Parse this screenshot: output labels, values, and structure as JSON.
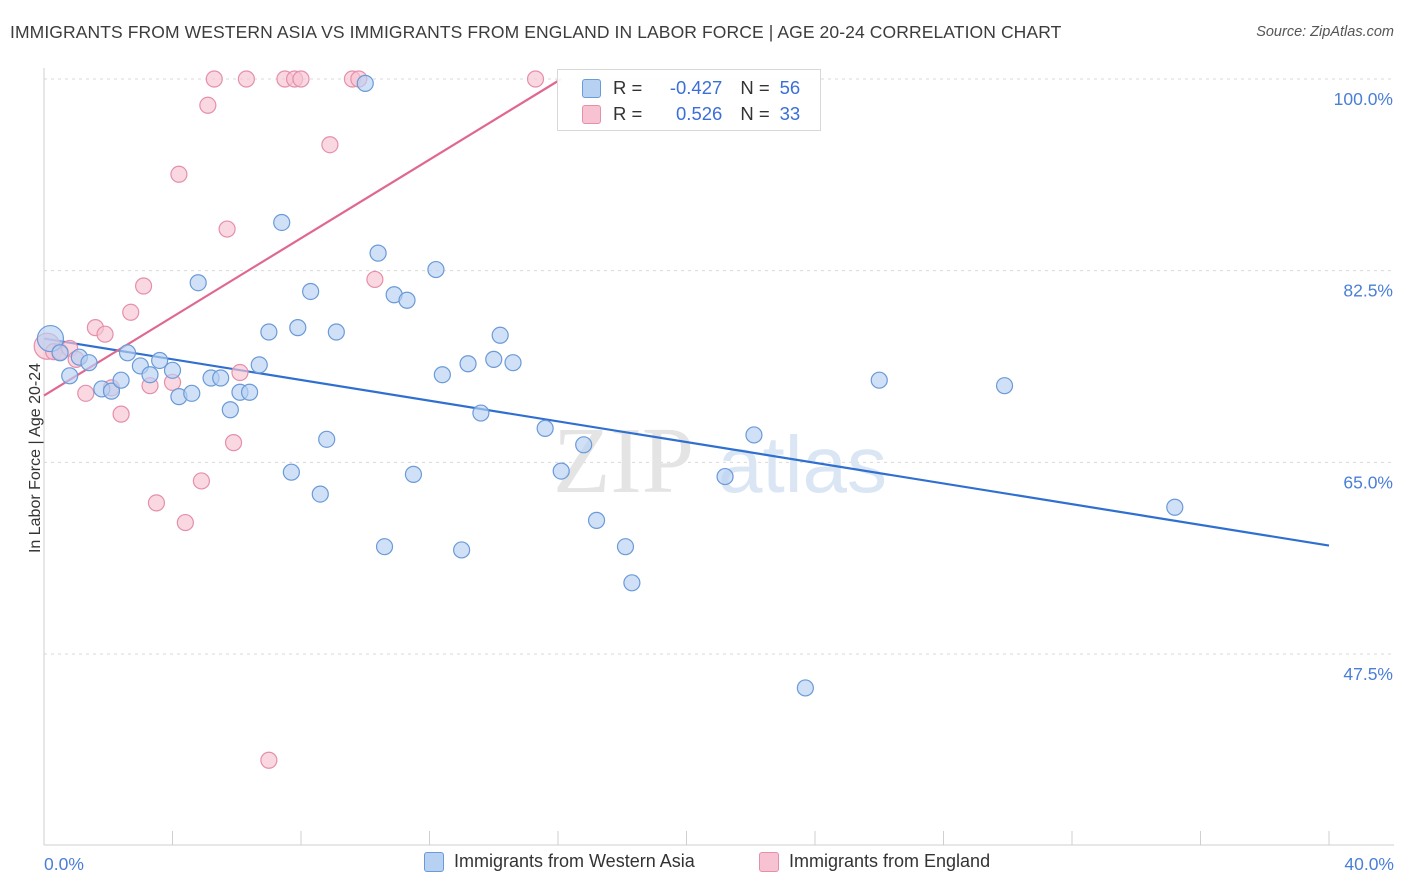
{
  "title": "IMMIGRANTS FROM WESTERN ASIA VS IMMIGRANTS FROM ENGLAND IN LABOR FORCE | AGE 20-24 CORRELATION CHART",
  "source": "Source: ZipAtlas.com",
  "watermark": {
    "zip": "ZIP",
    "atlas": "atlas"
  },
  "colors": {
    "blue_fill": "#b7d1f3",
    "blue_stroke": "#6a9ad8",
    "blue_line": "#2f6fd0",
    "pink_fill": "#f7c3d3",
    "pink_stroke": "#e58fab",
    "pink_line": "#e0688f",
    "tick_label": "#4a7fd6",
    "grid": "#d9d9d9"
  },
  "legend_inset": {
    "rows": [
      {
        "r_label": "R =",
        "r_value": "-0.427",
        "n_label": "N =",
        "n_value": "56"
      },
      {
        "r_label": "R =",
        "r_value": "0.526",
        "n_label": "N =",
        "n_value": "33"
      }
    ]
  },
  "legend_bottom": [
    "Immigrants from Western Asia",
    "Immigrants from England"
  ],
  "chart_data": {
    "type": "scatter",
    "title": "IMMIGRANTS FROM WESTERN ASIA VS IMMIGRANTS FROM ENGLAND IN LABOR FORCE | AGE 20-24 CORRELATION CHART",
    "xlabel": "",
    "ylabel": "In Labor Force | Age 20-24",
    "xlim": [
      0,
      40
    ],
    "ylim": [
      32,
      101.8
    ],
    "x_tick_labels": [
      "0.0%",
      "40.0%"
    ],
    "y_ticks": [
      47.5,
      65.0,
      82.5,
      100.0
    ],
    "y_tick_labels": [
      "47.5%",
      "65.0%",
      "82.5%",
      "100.0%"
    ],
    "grid": true,
    "legend_placement": "bottom",
    "series": [
      {
        "name": "Immigrants from Western Asia",
        "r": -0.427,
        "n": 56,
        "trend": {
          "x": [
            0.0,
            40.0
          ],
          "y": [
            76.3,
            57.4
          ]
        },
        "points": [
          [
            0.2,
            76.3
          ],
          [
            0.5,
            75.0
          ],
          [
            0.8,
            72.9
          ],
          [
            1.1,
            74.6
          ],
          [
            1.4,
            74.1
          ],
          [
            1.8,
            71.7
          ],
          [
            2.1,
            71.5
          ],
          [
            2.4,
            72.5
          ],
          [
            2.6,
            75.0
          ],
          [
            3.0,
            73.8
          ],
          [
            3.3,
            73.0
          ],
          [
            3.6,
            74.3
          ],
          [
            4.0,
            73.4
          ],
          [
            4.2,
            71.0
          ],
          [
            4.6,
            71.3
          ],
          [
            4.8,
            81.4
          ],
          [
            5.2,
            72.7
          ],
          [
            5.5,
            72.7
          ],
          [
            5.8,
            69.8
          ],
          [
            6.1,
            71.4
          ],
          [
            6.4,
            71.4
          ],
          [
            6.7,
            73.9
          ],
          [
            7.0,
            76.9
          ],
          [
            7.4,
            86.9
          ],
          [
            7.7,
            64.1
          ],
          [
            7.9,
            77.3
          ],
          [
            8.3,
            80.6
          ],
          [
            8.6,
            62.1
          ],
          [
            8.8,
            67.1
          ],
          [
            9.1,
            76.9
          ],
          [
            10.0,
            99.6
          ],
          [
            10.4,
            84.1
          ],
          [
            10.6,
            57.3
          ],
          [
            10.9,
            80.3
          ],
          [
            11.3,
            79.8
          ],
          [
            11.5,
            63.9
          ],
          [
            12.2,
            82.6
          ],
          [
            12.4,
            73.0
          ],
          [
            13.0,
            57.0
          ],
          [
            13.2,
            74.0
          ],
          [
            13.6,
            69.5
          ],
          [
            14.0,
            74.4
          ],
          [
            14.2,
            76.6
          ],
          [
            14.6,
            74.1
          ],
          [
            15.6,
            68.1
          ],
          [
            16.1,
            64.2
          ],
          [
            16.8,
            66.6
          ],
          [
            17.2,
            59.7
          ],
          [
            18.1,
            57.3
          ],
          [
            18.3,
            54.0
          ],
          [
            21.2,
            63.7
          ],
          [
            22.1,
            67.5
          ],
          [
            23.7,
            44.4
          ],
          [
            26.0,
            72.5
          ],
          [
            29.9,
            72.0
          ],
          [
            35.2,
            60.9
          ]
        ]
      },
      {
        "name": "Immigrants from England",
        "r": 0.526,
        "n": 33,
        "trend": {
          "x": [
            0.0,
            16.1
          ],
          "y": [
            71.1,
            100.0
          ]
        },
        "points": [
          [
            0.1,
            75.6
          ],
          [
            0.3,
            75.1
          ],
          [
            0.5,
            75.1
          ],
          [
            0.8,
            75.4
          ],
          [
            1.0,
            74.4
          ],
          [
            1.3,
            71.3
          ],
          [
            1.6,
            77.3
          ],
          [
            1.9,
            76.7
          ],
          [
            2.1,
            71.8
          ],
          [
            2.4,
            69.4
          ],
          [
            2.7,
            78.7
          ],
          [
            3.1,
            81.1
          ],
          [
            3.3,
            72.0
          ],
          [
            3.5,
            61.3
          ],
          [
            4.0,
            72.3
          ],
          [
            4.2,
            91.3
          ],
          [
            4.4,
            59.5
          ],
          [
            4.9,
            63.3
          ],
          [
            5.1,
            97.6
          ],
          [
            5.3,
            100.0
          ],
          [
            5.7,
            86.3
          ],
          [
            5.9,
            66.8
          ],
          [
            6.1,
            73.2
          ],
          [
            6.3,
            100.0
          ],
          [
            7.0,
            37.8
          ],
          [
            7.5,
            100.0
          ],
          [
            7.8,
            100.0
          ],
          [
            8.0,
            100.0
          ],
          [
            8.9,
            94.0
          ],
          [
            9.6,
            100.0
          ],
          [
            9.8,
            100.0
          ],
          [
            10.3,
            81.7
          ],
          [
            15.3,
            100.0
          ]
        ]
      }
    ]
  }
}
